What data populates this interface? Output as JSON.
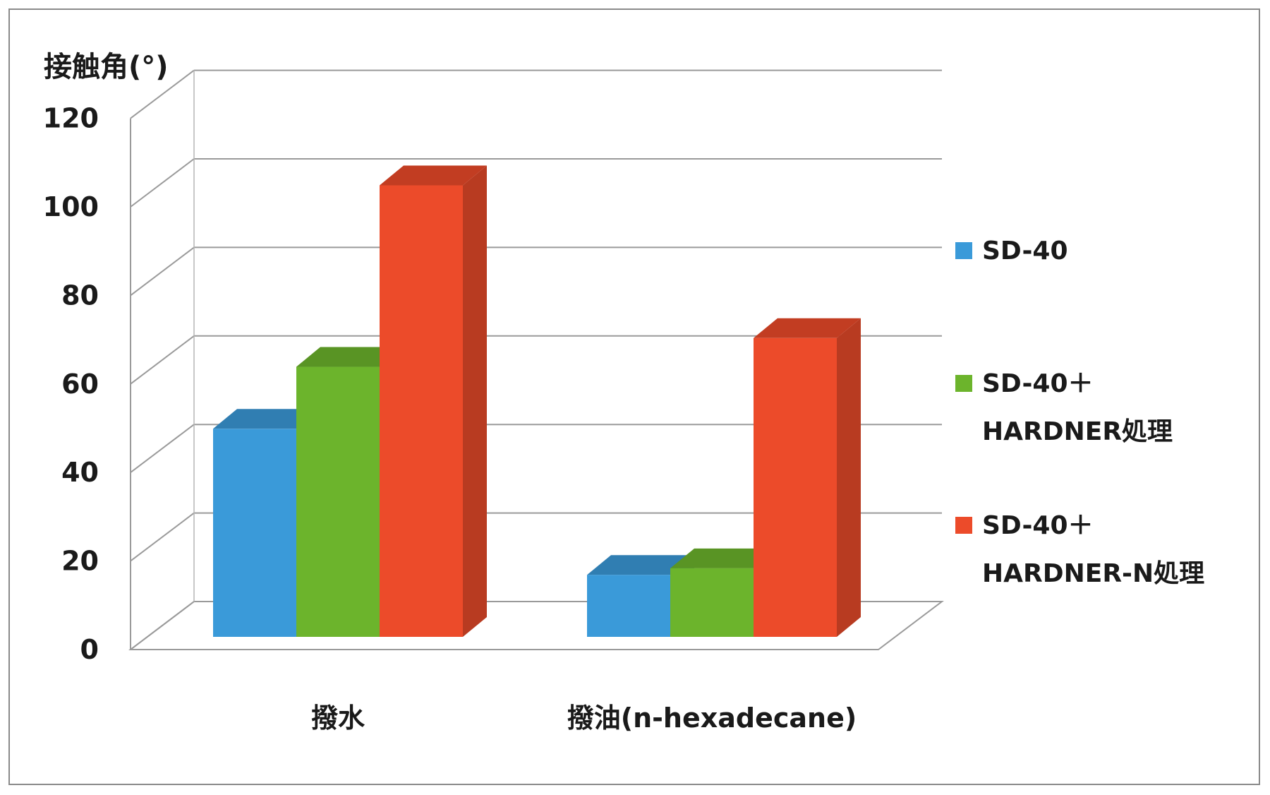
{
  "chart_data": {
    "type": "bar",
    "ylabel": "接触角(°)",
    "ylim": [
      0,
      120
    ],
    "yticks": [
      "0",
      "20",
      "40",
      "60",
      "80",
      "100",
      "120"
    ],
    "categories": [
      "撥水",
      "撥油(n-hexadecane)"
    ],
    "series": [
      {
        "name": "SD-40",
        "values": [
          47,
          14
        ],
        "color": "#3a9ad9"
      },
      {
        "name": "SD-40＋HARDNER処理",
        "values": [
          61,
          15.5
        ],
        "color": "#6cb42c"
      },
      {
        "name": "SD-40＋HARDNER-N処理",
        "values": [
          102,
          67.5
        ],
        "color": "#ec4b2a"
      }
    ],
    "legend": {
      "position": "right",
      "items": [
        {
          "lines": [
            "SD-40"
          ]
        },
        {
          "lines": [
            "SD-40＋",
            "HARDNER処理"
          ]
        },
        {
          "lines": [
            "SD-40＋",
            "HARDNER-N処理"
          ]
        }
      ]
    },
    "grid": true,
    "style": "3d-clustered-column"
  }
}
